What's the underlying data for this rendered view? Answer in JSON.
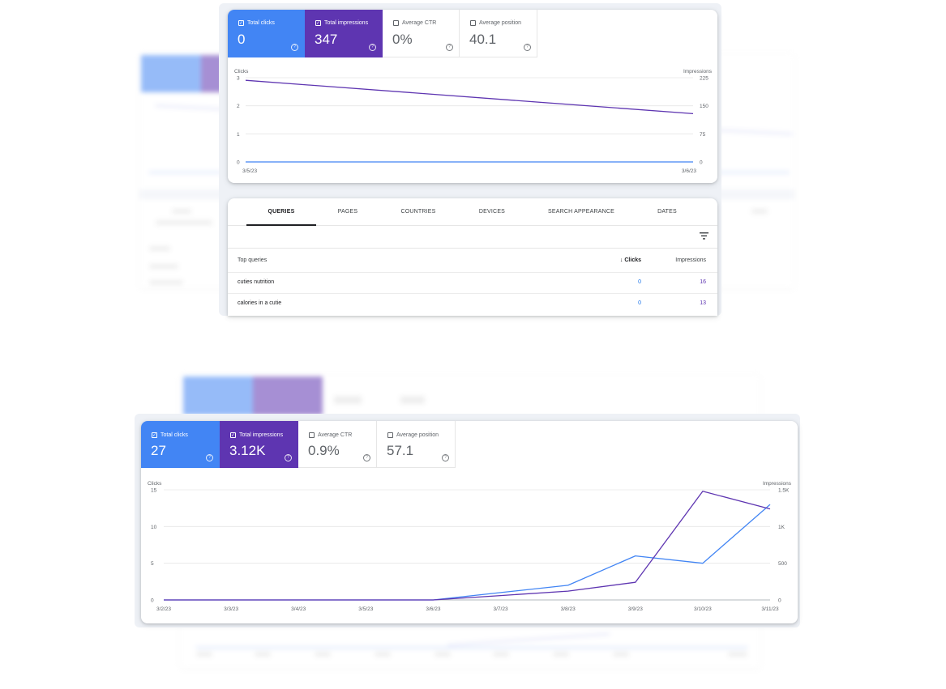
{
  "colors": {
    "clicks": "#4285f4",
    "impressions": "#5e35b1",
    "grid": "#e6e6e6"
  },
  "top_report": {
    "metrics": [
      {
        "label": "Total clicks",
        "value": "0",
        "checked": true,
        "accent": "#4285f4"
      },
      {
        "label": "Total impressions",
        "value": "347",
        "checked": true,
        "accent": "#5e35b1"
      },
      {
        "label": "Average CTR",
        "value": "0%",
        "checked": false
      },
      {
        "label": "Average position",
        "value": "40.1",
        "checked": false
      }
    ],
    "check_glyph": "✓",
    "help_glyph": "?",
    "chart_data": {
      "type": "line",
      "x": [
        "3/5/23",
        "3/6/23"
      ],
      "ylabel_left": "Clicks",
      "ylabel_right": "Impressions",
      "y_ticks_left": [
        "0",
        "1",
        "2",
        "3"
      ],
      "y_ticks_right": [
        "0",
        "75",
        "150",
        "225"
      ],
      "ylim_left": [
        0,
        3
      ],
      "ylim_right": [
        0,
        225
      ],
      "series": [
        {
          "name": "Clicks",
          "axis": "left",
          "color": "#4285f4",
          "values": [
            0,
            0
          ]
        },
        {
          "name": "Impressions",
          "axis": "right",
          "color": "#5e35b1",
          "values": [
            218,
            129
          ]
        }
      ]
    },
    "tabs": [
      "QUERIES",
      "PAGES",
      "COUNTRIES",
      "DEVICES",
      "SEARCH APPEARANCE",
      "DATES"
    ],
    "active_tab": "QUERIES",
    "filter_icon": "filter-icon",
    "table": {
      "headers": {
        "query": "Top queries",
        "clicks": "Clicks",
        "impressions": "Impressions",
        "sort_glyph": "↓"
      },
      "rows": [
        {
          "query": "cuties nutrition",
          "clicks": "0",
          "impressions": "16"
        },
        {
          "query": "calories in a cutie",
          "clicks": "0",
          "impressions": "13"
        }
      ]
    }
  },
  "bottom_report": {
    "metrics": [
      {
        "label": "Total clicks",
        "value": "27",
        "checked": true,
        "accent": "#4285f4"
      },
      {
        "label": "Total impressions",
        "value": "3.12K",
        "checked": true,
        "accent": "#5e35b1"
      },
      {
        "label": "Average CTR",
        "value": "0.9%",
        "checked": false
      },
      {
        "label": "Average position",
        "value": "57.1",
        "checked": false
      }
    ],
    "chart_data": {
      "type": "line",
      "x": [
        "3/2/23",
        "3/3/23",
        "3/4/23",
        "3/5/23",
        "3/6/23",
        "3/7/23",
        "3/8/23",
        "3/9/23",
        "3/10/23",
        "3/11/23"
      ],
      "ylabel_left": "Clicks",
      "ylabel_right": "Impressions",
      "y_ticks_left": [
        "0",
        "5",
        "10",
        "15"
      ],
      "y_ticks_right": [
        "0",
        "500",
        "1K",
        "1.5K"
      ],
      "ylim_left": [
        0,
        15
      ],
      "ylim_right": [
        0,
        1500
      ],
      "series": [
        {
          "name": "Clicks",
          "axis": "left",
          "color": "#4285f4",
          "values": [
            0,
            0,
            0,
            0,
            0,
            1,
            2,
            6,
            5,
            13
          ]
        },
        {
          "name": "Impressions",
          "axis": "right",
          "color": "#5e35b1",
          "values": [
            0,
            0,
            0,
            0,
            0,
            60,
            120,
            240,
            1480,
            1240
          ]
        }
      ]
    }
  }
}
